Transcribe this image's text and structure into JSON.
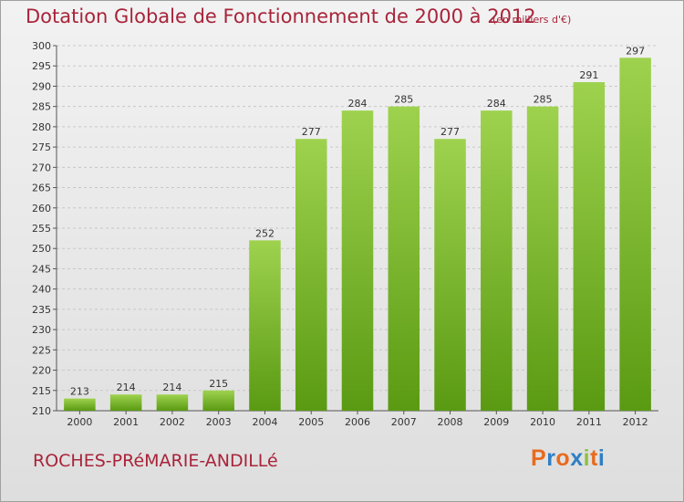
{
  "header": {
    "title": "Dotation Globale de Fonctionnement de 2000 à 2012",
    "unit": "(en milliers d'€)"
  },
  "footer": {
    "place": "ROCHES-PRéMARIE-ANDILLé",
    "logo": [
      "P",
      "r",
      "o",
      "x",
      "i",
      "t",
      "i"
    ]
  },
  "colors": {
    "bar_top": "#9ed24e",
    "bar_bottom": "#5a9a12",
    "grid": "#c8c8c8",
    "title": "#a8243a",
    "logo": [
      "#e86b1e",
      "#2f7fc4",
      "#e86b1e",
      "#2f7fc4",
      "#8dc23f",
      "#e86b1e",
      "#2f7fc4"
    ]
  },
  "chart_data": {
    "type": "bar",
    "title": "Dotation Globale de Fonctionnement de 2000 à 2012",
    "subtitle": "(en milliers d'€)",
    "categories": [
      "2000",
      "2001",
      "2002",
      "2003",
      "2004",
      "2005",
      "2006",
      "2007",
      "2008",
      "2009",
      "2010",
      "2011",
      "2012"
    ],
    "values": [
      213,
      214,
      214,
      215,
      252,
      277,
      284,
      285,
      277,
      284,
      285,
      291,
      297
    ],
    "ylim": [
      210,
      300
    ],
    "yticks": [
      210,
      215,
      220,
      225,
      230,
      235,
      240,
      245,
      250,
      255,
      260,
      265,
      270,
      275,
      280,
      285,
      290,
      295,
      300
    ],
    "grid": true,
    "data_labels": true
  }
}
